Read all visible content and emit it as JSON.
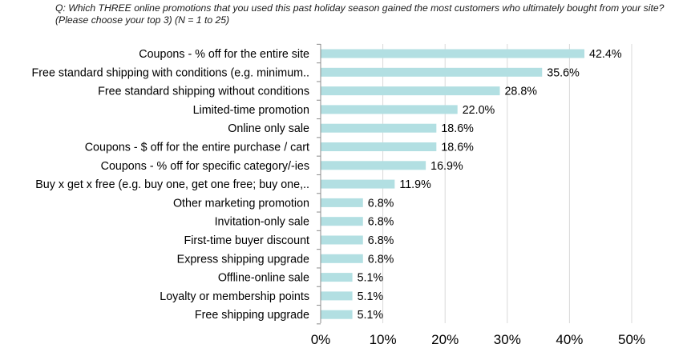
{
  "question": "Q: Which THREE online promotions that you used this past holiday season gained the most customers who ultimately bought from your site? (Please choose your top 3)  (N = 1 to 25)",
  "colors": {
    "bar": "#b2dfe2",
    "gridline": "#d9d9d9",
    "axis": "#8c8c8c"
  },
  "chart_data": {
    "type": "bar",
    "orientation": "horizontal",
    "title": "",
    "xlabel": "",
    "ylabel": "",
    "xlim": [
      0,
      50
    ],
    "grid": true,
    "categories": [
      "Coupons - % off for the entire site",
      "Free standard shipping with conditions (e.g. minimum..",
      "Free standard shipping without conditions",
      "Limited-time promotion",
      "Online only sale",
      "Coupons - $ off for the entire purchase / cart",
      "Coupons - % off for specific category/-ies",
      "Buy x get x free (e.g. buy one, get one free; buy one,..",
      "Other marketing promotion",
      "Invitation-only sale",
      "First-time buyer discount",
      "Express shipping upgrade",
      "Offline-online sale",
      "Loyalty or membership points",
      "Free shipping upgrade"
    ],
    "values": [
      42.4,
      35.6,
      28.8,
      22.0,
      18.6,
      18.6,
      16.9,
      11.9,
      6.8,
      6.8,
      6.8,
      6.8,
      5.1,
      5.1,
      5.1
    ],
    "value_labels": [
      "42.4%",
      "35.6%",
      "28.8%",
      "22.0%",
      "18.6%",
      "18.6%",
      "16.9%",
      "11.9%",
      "6.8%",
      "6.8%",
      "6.8%",
      "6.8%",
      "5.1%",
      "5.1%",
      "5.1%"
    ],
    "ticks": [
      0,
      10,
      20,
      30,
      40,
      50
    ],
    "tick_labels": [
      "0%",
      "10%",
      "20%",
      "30%",
      "40%",
      "50%"
    ]
  }
}
